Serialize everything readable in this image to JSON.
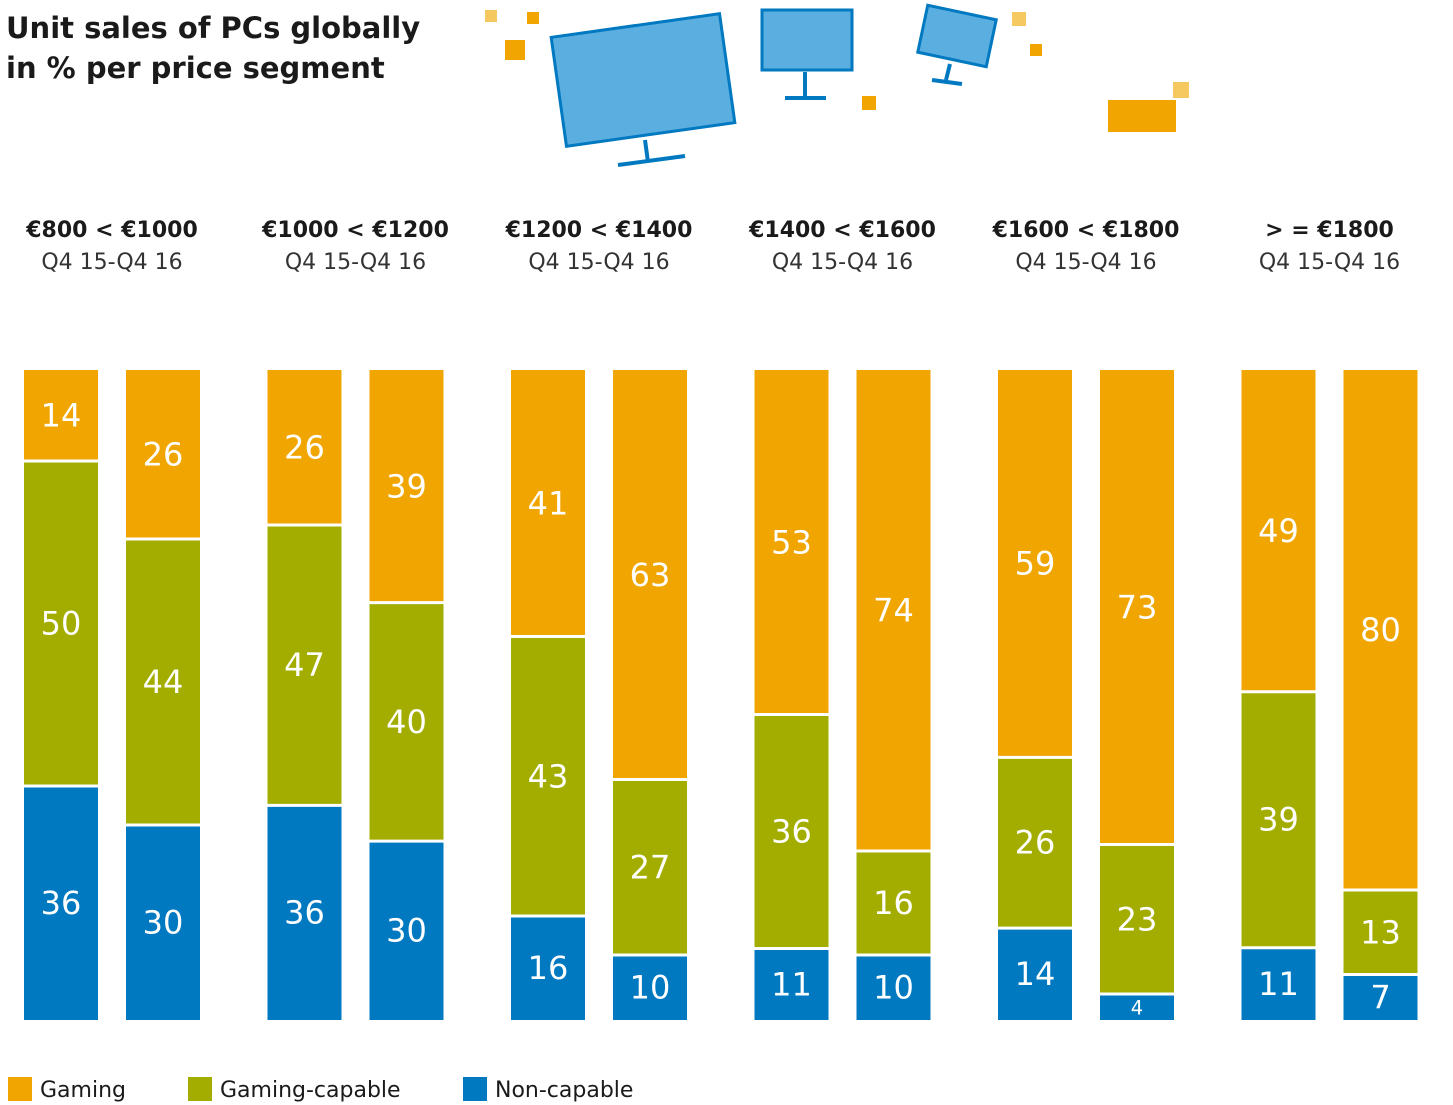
{
  "chart_data": {
    "type": "stacked-bar",
    "title": "Unit sales of PCs globally",
    "subtitle": "in % per price segment",
    "groups": [
      {
        "label": "€800 < €1000",
        "period": "Q4 15-Q4 16"
      },
      {
        "label": "€1000 < €1200",
        "period": "Q4 15-Q4 16"
      },
      {
        "label": "€1200 < €1400",
        "period": "Q4 15-Q4 16"
      },
      {
        "label": "€1400 < €1600",
        "period": "Q4 15-Q4 16"
      },
      {
        "label": "€1600 < €1800",
        "period": "Q4 15-Q4 16"
      },
      {
        "label": "> = €1800",
        "period": "Q4 15-Q4 16"
      }
    ],
    "series": [
      {
        "name": "Non-capable",
        "color": "#0079c1",
        "values": [
          36,
          30,
          36,
          30,
          16,
          10,
          11,
          10,
          14,
          4,
          11,
          7
        ]
      },
      {
        "name": "Gaming-capable",
        "color": "#a3ad00",
        "values": [
          50,
          44,
          47,
          40,
          43,
          27,
          36,
          16,
          26,
          23,
          39,
          13
        ]
      },
      {
        "name": "Gaming",
        "color": "#f0a500",
        "values": [
          14,
          26,
          26,
          39,
          41,
          63,
          53,
          74,
          59,
          73,
          49,
          80
        ]
      }
    ]
  }
}
